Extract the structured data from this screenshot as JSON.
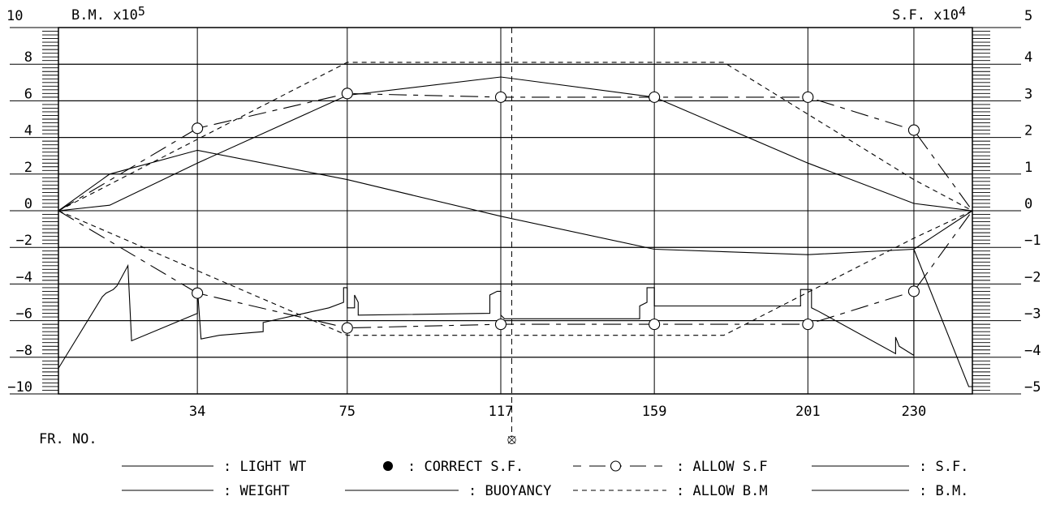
{
  "chart_data": {
    "type": "line",
    "left_axis": {
      "label": "B.M.",
      "multiplier_text": "x10",
      "multiplier_exp": "5",
      "ticks": [
        "10",
        "8",
        "6",
        "4",
        "2",
        "0",
        "−2",
        "−4",
        "−6",
        "−8",
        "−10"
      ],
      "tick_values": [
        10,
        8,
        6,
        4,
        2,
        0,
        -2,
        -4,
        -6,
        -8,
        -10
      ],
      "ylim": [
        -10,
        10
      ]
    },
    "right_axis": {
      "label": "S.F.",
      "multiplier_text": "x10",
      "multiplier_exp": "4",
      "ticks": [
        "5",
        "4",
        "3",
        "2",
        "1",
        "0",
        "−1",
        "−2",
        "−3",
        "−4",
        "−5"
      ],
      "tick_values": [
        5,
        4,
        3,
        2,
        1,
        0,
        -1,
        -2,
        -3,
        -4,
        -5
      ],
      "ylim": [
        -5,
        5
      ]
    },
    "x_axis": {
      "label": "FR. NO.",
      "xlim": [
        -4,
        246
      ],
      "frame_labels": [
        "34",
        "75",
        "117",
        "159",
        "201",
        "230"
      ],
      "frame_values": [
        34,
        75,
        117,
        159,
        201,
        230
      ],
      "midship_frame": 120,
      "midship_symbol": "⦻"
    },
    "grid": true,
    "legend": [
      [
        {
          "key": "light_wt",
          "style": "solid",
          "text": ": LIGHT WT"
        },
        {
          "key": "correct_sf",
          "style": "dot",
          "text": ": CORRECT S.F."
        },
        {
          "key": "allow_sf",
          "style": "dashcircle",
          "text": ": ALLOW S.F"
        },
        {
          "key": "sf",
          "style": "solid",
          "text": ": S.F."
        }
      ],
      [
        {
          "key": "weight",
          "style": "solid",
          "text": ": WEIGHT"
        },
        {
          "key": "buoyancy",
          "style": "solid",
          "text": ": BUOYANCY"
        },
        {
          "key": "allow_bm",
          "style": "dash",
          "text": ": ALLOW B.M"
        },
        {
          "key": "bm",
          "style": "solid",
          "text": ": B.M."
        }
      ]
    ],
    "series": [
      {
        "name": "ALLOW B.M",
        "axis": "left",
        "style": "dash",
        "points": [
          [
            -4,
            0
          ],
          [
            75,
            8.1
          ],
          [
            178,
            8.1
          ],
          [
            230,
            1.7
          ],
          [
            246,
            0
          ]
        ]
      },
      {
        "name": "ALLOW B.M",
        "axis": "left",
        "style": "dash",
        "points": [
          [
            -4,
            0
          ],
          [
            75,
            -6.8
          ],
          [
            178,
            -6.8
          ],
          [
            230,
            -1.5
          ],
          [
            246,
            0
          ]
        ]
      },
      {
        "name": "ALLOW S.F",
        "axis": "right",
        "style": "dashcircle",
        "points": [
          [
            -4,
            0
          ],
          [
            34,
            2.25
          ],
          [
            75,
            3.2
          ],
          [
            117,
            3.1
          ],
          [
            159,
            3.1
          ],
          [
            201,
            3.1
          ],
          [
            230,
            2.2
          ],
          [
            246,
            0
          ]
        ],
        "markers": [
          [
            34,
            2.25
          ],
          [
            75,
            3.2
          ],
          [
            117,
            3.1
          ],
          [
            159,
            3.1
          ],
          [
            201,
            3.1
          ],
          [
            230,
            2.2
          ]
        ]
      },
      {
        "name": "ALLOW S.F",
        "axis": "right",
        "style": "dashcircle",
        "points": [
          [
            -4,
            0
          ],
          [
            34,
            -2.25
          ],
          [
            75,
            -3.2
          ],
          [
            117,
            -3.1
          ],
          [
            159,
            -3.1
          ],
          [
            201,
            -3.1
          ],
          [
            230,
            -2.2
          ],
          [
            246,
            0
          ]
        ],
        "markers": [
          [
            34,
            -2.25
          ],
          [
            75,
            -3.2
          ],
          [
            117,
            -3.1
          ],
          [
            159,
            -3.1
          ],
          [
            201,
            -3.1
          ],
          [
            230,
            -2.2
          ]
        ]
      },
      {
        "name": "B.M.",
        "axis": "left",
        "style": "solid",
        "points": [
          [
            -4,
            0
          ],
          [
            10,
            0.3
          ],
          [
            34,
            2.6
          ],
          [
            75,
            6.3
          ],
          [
            117,
            7.3
          ],
          [
            159,
            6.2
          ],
          [
            201,
            2.6
          ],
          [
            230,
            0.4
          ],
          [
            246,
            0
          ]
        ]
      },
      {
        "name": "S.F.",
        "axis": "right",
        "style": "solid",
        "points": [
          [
            -4,
            0
          ],
          [
            10,
            1.0
          ],
          [
            34,
            1.65
          ],
          [
            75,
            0.85
          ],
          [
            117,
            -0.15
          ],
          [
            159,
            -1.05
          ],
          [
            201,
            -1.2
          ],
          [
            230,
            -1.05
          ],
          [
            246,
            0
          ]
        ]
      },
      {
        "name": "WEIGHT",
        "axis": "left",
        "style": "solid",
        "points": [
          [
            -4,
            -8.6
          ],
          [
            8,
            -4.7
          ],
          [
            9,
            -4.5
          ],
          [
            11,
            -4.3
          ],
          [
            12,
            -4.1
          ],
          [
            15,
            -3.0
          ],
          [
            16,
            -7.1
          ],
          [
            34,
            -5.6
          ],
          [
            34,
            -4.2
          ],
          [
            35,
            -7.0
          ],
          [
            40,
            -6.8
          ],
          [
            52,
            -6.6
          ],
          [
            52,
            -6.1
          ],
          [
            70,
            -5.3
          ],
          [
            74,
            -5.0
          ],
          [
            74,
            -4.2
          ],
          [
            75,
            -4.2
          ],
          [
            75,
            -5.3
          ],
          [
            77,
            -5.3
          ],
          [
            77,
            -4.6
          ],
          [
            78,
            -5.0
          ],
          [
            78,
            -5.7
          ],
          [
            114,
            -5.6
          ],
          [
            114,
            -4.6
          ],
          [
            116,
            -4.4
          ],
          [
            117,
            -4.4
          ],
          [
            117,
            -5.7
          ],
          [
            118,
            -5.9
          ],
          [
            155,
            -5.9
          ],
          [
            155,
            -5.2
          ],
          [
            157,
            -5.0
          ],
          [
            157,
            -4.2
          ],
          [
            159,
            -4.2
          ],
          [
            159,
            -5.0
          ],
          [
            159,
            -5.2
          ],
          [
            199,
            -5.2
          ],
          [
            199,
            -4.3
          ],
          [
            202,
            -4.3
          ],
          [
            202,
            -5.3
          ],
          [
            204,
            -5.5
          ],
          [
            225,
            -7.8
          ],
          [
            225,
            -6.9
          ],
          [
            226,
            -7.4
          ],
          [
            230,
            -7.9
          ],
          [
            230,
            -2.1
          ],
          [
            244,
            -9.1
          ],
          [
            245,
            -9.6
          ],
          [
            246,
            -9.6
          ]
        ]
      }
    ]
  }
}
